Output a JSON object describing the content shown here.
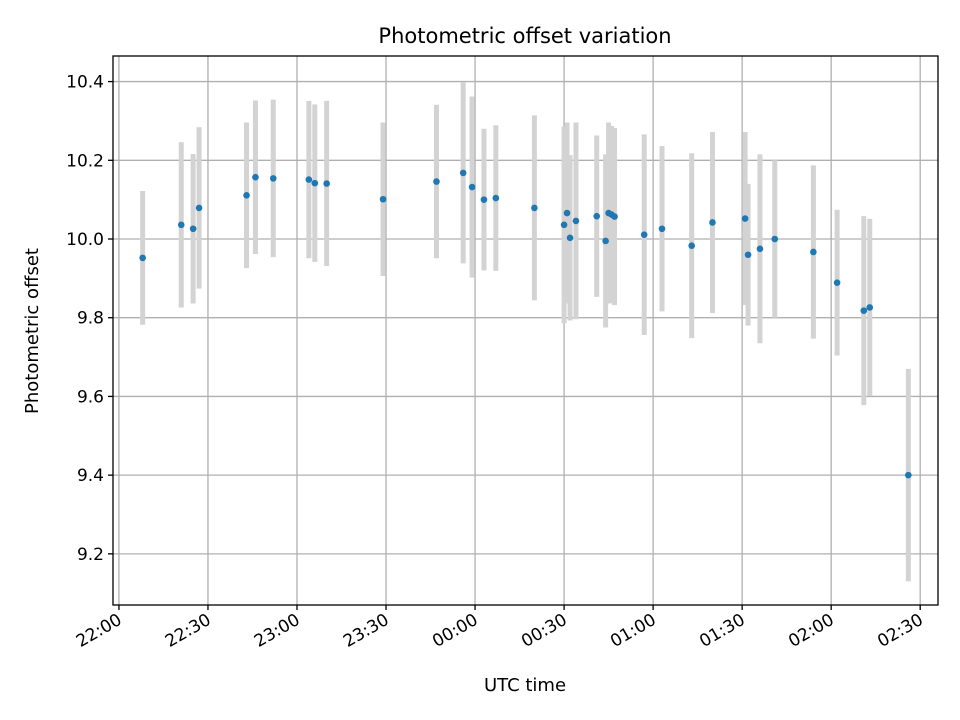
{
  "chart_data": {
    "type": "scatter",
    "title": "Photometric offset variation",
    "xlabel": "UTC time",
    "ylabel": "Photometric offset",
    "x_axis_kind": "time",
    "xlim": [
      "21:58",
      "02:36"
    ],
    "ylim": [
      9.07,
      10.465
    ],
    "x_ticks": [
      "22:00",
      "22:30",
      "23:00",
      "23:30",
      "00:00",
      "00:30",
      "01:00",
      "01:30",
      "02:00",
      "02:30"
    ],
    "y_ticks": [
      "9.2",
      "9.4",
      "9.6",
      "9.8",
      "10.0",
      "10.2",
      "10.4"
    ],
    "grid": true,
    "point_color": "#1f77b4",
    "errorbar_color": "#d3d3d3",
    "points": [
      {
        "x": "22:08",
        "y": 9.952,
        "err": 0.17
      },
      {
        "x": "22:21",
        "y": 10.036,
        "err": 0.21
      },
      {
        "x": "22:25",
        "y": 10.026,
        "err": 0.19
      },
      {
        "x": "22:27",
        "y": 10.079,
        "err": 0.205
      },
      {
        "x": "22:43",
        "y": 10.111,
        "err": 0.185
      },
      {
        "x": "22:46",
        "y": 10.157,
        "err": 0.195
      },
      {
        "x": "22:52",
        "y": 10.154,
        "err": 0.2
      },
      {
        "x": "23:04",
        "y": 10.151,
        "err": 0.2
      },
      {
        "x": "23:06",
        "y": 10.142,
        "err": 0.2
      },
      {
        "x": "23:10",
        "y": 10.141,
        "err": 0.21
      },
      {
        "x": "23:29",
        "y": 10.101,
        "err": 0.195
      },
      {
        "x": "23:47",
        "y": 10.146,
        "err": 0.195
      },
      {
        "x": "23:56",
        "y": 10.168,
        "err": 0.23
      },
      {
        "x": "23:59",
        "y": 10.132,
        "err": 0.23
      },
      {
        "x": "00:03",
        "y": 10.1,
        "err": 0.18
      },
      {
        "x": "00:07",
        "y": 10.104,
        "err": 0.185
      },
      {
        "x": "00:20",
        "y": 10.079,
        "err": 0.235
      },
      {
        "x": "00:30",
        "y": 10.036,
        "err": 0.25
      },
      {
        "x": "00:31",
        "y": 10.066,
        "err": 0.23
      },
      {
        "x": "00:32",
        "y": 10.003,
        "err": 0.21
      },
      {
        "x": "00:34",
        "y": 10.046,
        "err": 0.25
      },
      {
        "x": "00:41",
        "y": 10.058,
        "err": 0.205
      },
      {
        "x": "00:44",
        "y": 9.995,
        "err": 0.22
      },
      {
        "x": "00:45",
        "y": 10.066,
        "err": 0.23
      },
      {
        "x": "00:46",
        "y": 10.062,
        "err": 0.225
      },
      {
        "x": "00:47",
        "y": 10.057,
        "err": 0.225
      },
      {
        "x": "00:57",
        "y": 10.011,
        "err": 0.255
      },
      {
        "x": "01:03",
        "y": 10.026,
        "err": 0.21
      },
      {
        "x": "01:13",
        "y": 9.983,
        "err": 0.235
      },
      {
        "x": "01:20",
        "y": 10.042,
        "err": 0.23
      },
      {
        "x": "01:31",
        "y": 10.052,
        "err": 0.22
      },
      {
        "x": "01:32",
        "y": 9.96,
        "err": 0.18
      },
      {
        "x": "01:36",
        "y": 9.975,
        "err": 0.24
      },
      {
        "x": "01:41",
        "y": 10.0,
        "err": 0.2
      },
      {
        "x": "01:54",
        "y": 9.967,
        "err": 0.22
      },
      {
        "x": "02:02",
        "y": 9.889,
        "err": 0.185
      },
      {
        "x": "02:11",
        "y": 9.818,
        "err": 0.24
      },
      {
        "x": "02:13",
        "y": 9.826,
        "err": 0.225
      },
      {
        "x": "02:26",
        "y": 9.4,
        "err": 0.27
      }
    ]
  }
}
